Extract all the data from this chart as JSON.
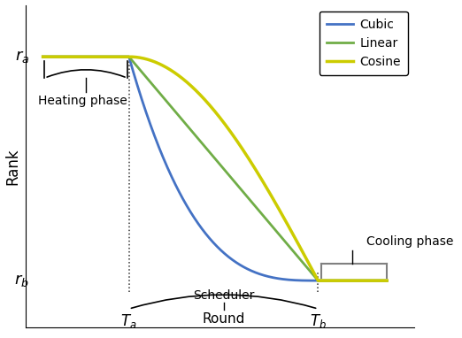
{
  "T_a": 0.25,
  "T_b": 0.8,
  "r_a": 1.0,
  "r_b": 0.05,
  "x_min": 0.0,
  "x_max": 1.0,
  "colors": {
    "cubic": "#4472C4",
    "linear": "#70AD47",
    "cosine": "#CCCC00",
    "cooling_bracket": "#808080",
    "heating_bracket": "#222222",
    "dotted_line": "#333333"
  },
  "legend_labels": [
    "Cubic",
    "Linear",
    "Cosine"
  ],
  "ylabel": "Rank",
  "xlabel": "Round",
  "heating_label": "Heating phase",
  "cooling_label": "Cooling phase",
  "scheduler_label": "Scheduler",
  "Ta_label": "$T_a$",
  "Tb_label": "$T_b$",
  "ra_label": "$r_a$",
  "rb_label": "$r_b$"
}
